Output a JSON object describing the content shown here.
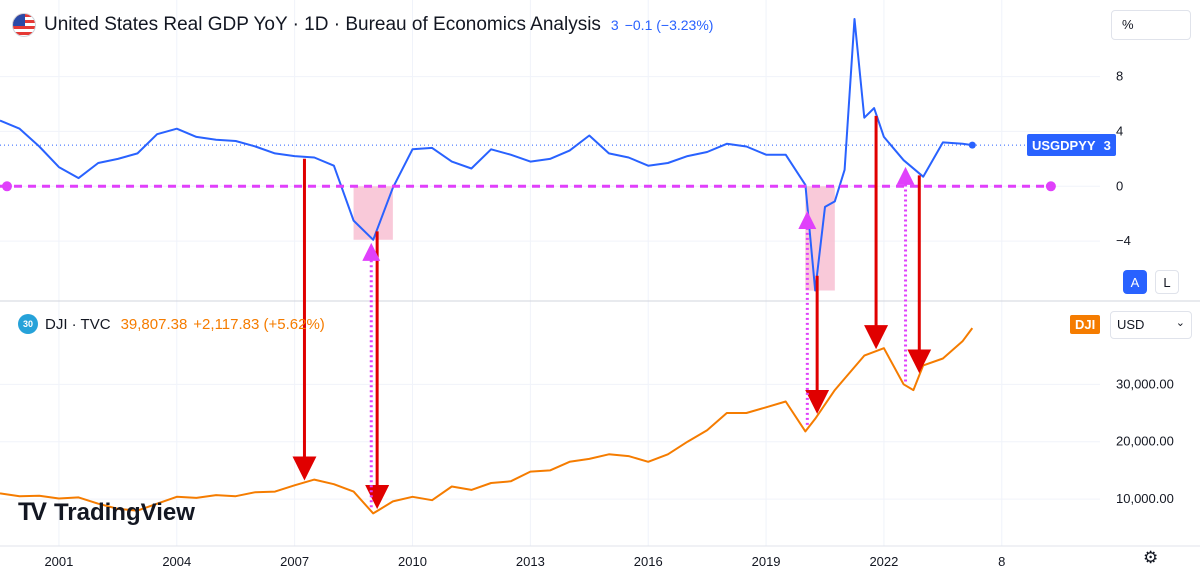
{
  "header": {
    "title": "United States Real GDP YoY · 1D · Bureau of Economics Analysis",
    "last_value": "3",
    "change": "−0.1 (−3.23%)"
  },
  "lower_header": {
    "title": "DJI · TVC",
    "badge": "30",
    "last_value": "39,807.38",
    "change": "+2,117.83 (+5.62%)"
  },
  "scale": {
    "unit_label": "%",
    "auto_label": "A",
    "log_label": "L",
    "currency_label": "USD"
  },
  "tags": {
    "gdp_name": "USGDPYY",
    "gdp_value": "3",
    "dji_name": "DJI"
  },
  "watermark": {
    "mark": "TV",
    "word": "TradingView"
  },
  "icons": {
    "settings": "gear-icon",
    "flag": "us-flag-icon",
    "chevron": "chevron-down-icon"
  },
  "colors": {
    "gdp_line": "#2962ff",
    "dji_line": "#f57c00",
    "arrow_red": "#e00000",
    "annotation_magenta": "#e040fb",
    "recession_fill": "#f8bbd0"
  },
  "chart_data": [
    {
      "type": "line",
      "name": "USGDPYY",
      "yticks": [
        "8",
        "4",
        "0",
        "−4"
      ],
      "ytick_values": [
        8,
        4,
        0,
        -4
      ],
      "ylim": [
        -8,
        13
      ],
      "xlim": [
        1999.5,
        2027.5
      ],
      "x": [
        1999.5,
        2000.0,
        2000.5,
        2001.0,
        2001.5,
        2002.0,
        2002.5,
        2003.0,
        2003.5,
        2004.0,
        2004.5,
        2005.0,
        2005.5,
        2006.0,
        2006.5,
        2007.0,
        2007.5,
        2008.0,
        2008.5,
        2009.0,
        2009.5,
        2010.0,
        2010.5,
        2011.0,
        2011.5,
        2012.0,
        2012.5,
        2013.0,
        2013.5,
        2014.0,
        2014.5,
        2015.0,
        2015.5,
        2016.0,
        2016.5,
        2017.0,
        2017.5,
        2018.0,
        2018.5,
        2019.0,
        2019.5,
        2020.0,
        2020.25,
        2020.5,
        2020.75,
        2021.0,
        2021.25,
        2021.5,
        2021.75,
        2022.0,
        2022.5,
        2023.0,
        2023.5,
        2024.0,
        2024.25
      ],
      "values": [
        4.8,
        4.2,
        2.9,
        1.4,
        0.6,
        1.7,
        2.0,
        2.4,
        3.8,
        4.2,
        3.6,
        3.4,
        3.3,
        2.9,
        2.4,
        2.2,
        2.1,
        1.5,
        -2.5,
        -3.9,
        -0.1,
        2.7,
        2.8,
        1.8,
        1.3,
        2.7,
        2.3,
        1.8,
        2.0,
        2.6,
        3.7,
        2.4,
        2.1,
        1.5,
        1.7,
        2.2,
        2.5,
        3.1,
        2.9,
        2.3,
        2.3,
        0.1,
        -7.6,
        -1.5,
        -1.1,
        1.2,
        12.2,
        5.0,
        5.7,
        3.6,
        1.9,
        0.7,
        3.2,
        3.1,
        3.0
      ],
      "zero_line": 0,
      "recession_bands": [
        [
          2008.5,
          2009.5
        ],
        [
          2020.0,
          2020.75
        ]
      ]
    },
    {
      "type": "line",
      "name": "DJI",
      "yticks": [
        "30,000.00",
        "20,000.00",
        "10,000.00"
      ],
      "ytick_values": [
        30000,
        20000,
        10000
      ],
      "ylim": [
        2000,
        44000
      ],
      "xticks": [
        "2001",
        "2004",
        "2007",
        "2010",
        "2013",
        "2016",
        "2019",
        "2022",
        "8"
      ],
      "xtick_values": [
        2001,
        2004,
        2007,
        2010,
        2013,
        2016,
        2019,
        2022,
        2025
      ],
      "x": [
        1999.5,
        2000.0,
        2000.5,
        2001.0,
        2001.5,
        2002.0,
        2002.5,
        2003.0,
        2003.5,
        2004.0,
        2004.5,
        2005.0,
        2005.5,
        2006.0,
        2006.5,
        2007.0,
        2007.5,
        2008.0,
        2008.5,
        2009.0,
        2009.5,
        2010.0,
        2010.5,
        2011.0,
        2011.5,
        2012.0,
        2012.5,
        2013.0,
        2013.5,
        2014.0,
        2014.5,
        2015.0,
        2015.5,
        2016.0,
        2016.5,
        2017.0,
        2017.5,
        2018.0,
        2018.5,
        2019.0,
        2019.5,
        2020.0,
        2020.25,
        2020.5,
        2020.75,
        2021.0,
        2021.5,
        2022.0,
        2022.5,
        2022.75,
        2023.0,
        2023.5,
        2024.0,
        2024.25
      ],
      "values": [
        11000,
        10500,
        10600,
        10100,
        10300,
        9200,
        8300,
        8000,
        9200,
        10400,
        10200,
        10700,
        10500,
        11200,
        11300,
        12400,
        13400,
        12600,
        11300,
        7500,
        9600,
        10400,
        9800,
        12200,
        11600,
        12800,
        13100,
        14800,
        15000,
        16500,
        17000,
        17800,
        17500,
        16500,
        17800,
        20000,
        22000,
        25000,
        25000,
        26000,
        27000,
        21800,
        24000,
        26500,
        29000,
        31000,
        35000,
        36300,
        30000,
        29000,
        33300,
        34500,
        37500,
        39800
      ]
    }
  ]
}
